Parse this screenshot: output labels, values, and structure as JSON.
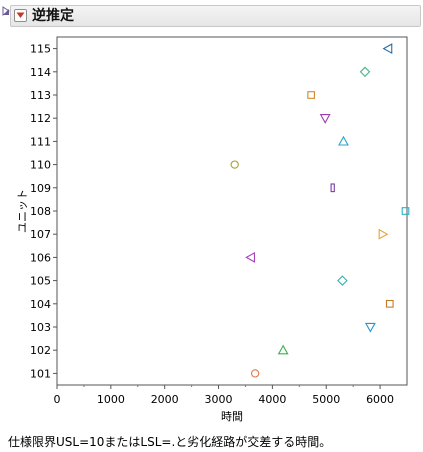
{
  "header": {
    "title": "逆推定"
  },
  "chart_data": {
    "type": "scatter",
    "title": "",
    "xlabel": "時間",
    "ylabel": "ユニット",
    "xlim": [
      0,
      6500
    ],
    "x_ticks": [
      0,
      1000,
      2000,
      3000,
      4000,
      5000,
      6000
    ],
    "categories": [
      "101",
      "102",
      "103",
      "104",
      "105",
      "106",
      "107",
      "108",
      "109",
      "110",
      "111",
      "112",
      "113",
      "114",
      "115"
    ],
    "grid": false,
    "points": [
      {
        "unit": "101",
        "x": 3680,
        "marker": "circle",
        "color": "#e07b4f"
      },
      {
        "unit": "102",
        "x": 4200,
        "marker": "triangle-up",
        "color": "#3db34a"
      },
      {
        "unit": "103",
        "x": 5820,
        "marker": "triangle-down",
        "color": "#2a97c9"
      },
      {
        "unit": "104",
        "x": 6180,
        "marker": "square",
        "color": "#c47a2c"
      },
      {
        "unit": "105",
        "x": 5300,
        "marker": "diamond",
        "color": "#3ab0a8"
      },
      {
        "unit": "106",
        "x": 3600,
        "marker": "triangle-left",
        "color": "#a646b8"
      },
      {
        "unit": "107",
        "x": 6050,
        "marker": "triangle-right",
        "color": "#e8a13a"
      },
      {
        "unit": "108",
        "x": 6500,
        "marker": "square",
        "color": "#2cb0c0"
      },
      {
        "unit": "109",
        "x": 5120,
        "marker": "thin-rect",
        "color": "#7a3fa0"
      },
      {
        "unit": "110",
        "x": 3300,
        "marker": "circle",
        "color": "#a8a02a"
      },
      {
        "unit": "111",
        "x": 5320,
        "marker": "triangle-up",
        "color": "#2aa3c9"
      },
      {
        "unit": "112",
        "x": 4980,
        "marker": "triangle-down",
        "color": "#9a3fb0"
      },
      {
        "unit": "113",
        "x": 4720,
        "marker": "square",
        "color": "#d08a2a"
      },
      {
        "unit": "114",
        "x": 5720,
        "marker": "diamond",
        "color": "#4fb58a"
      },
      {
        "unit": "115",
        "x": 6150,
        "marker": "triangle-left",
        "color": "#2a6ea8"
      }
    ]
  },
  "footnote": "仕様限界USL=10またはLSL=.と劣化経路が交差する時間。"
}
